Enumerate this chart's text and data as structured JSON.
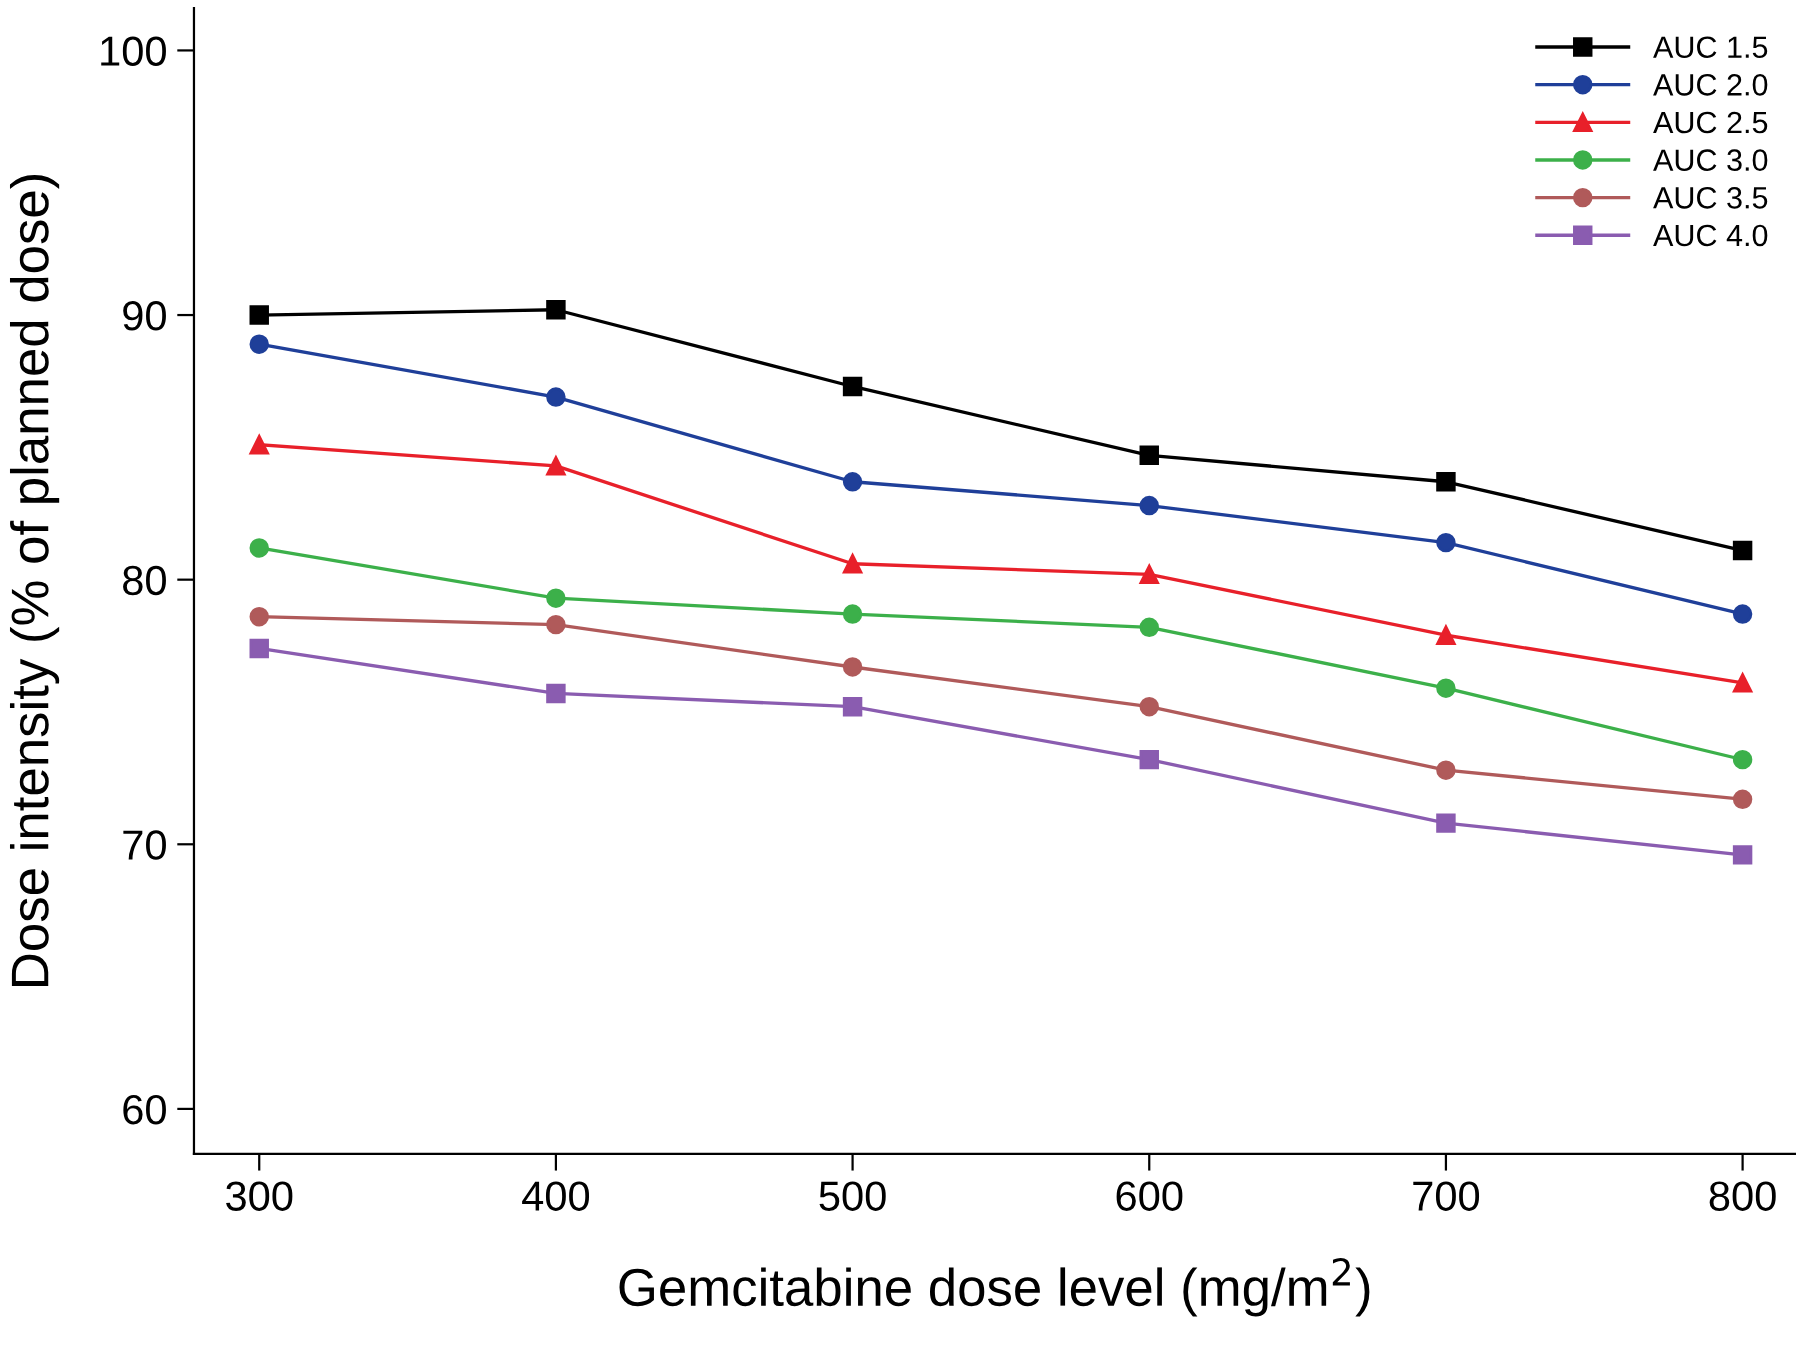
{
  "chart_data": {
    "type": "line",
    "xlabel": "Gemcitabine dose level (mg/m$^{2}$)",
    "ylabel": "Dose intensity (% of planned dose)",
    "x": [
      300,
      400,
      500,
      600,
      700,
      800
    ],
    "xlim": [
      278,
      818
    ],
    "xticks": [
      300,
      400,
      500,
      600,
      700,
      800
    ],
    "ylim": [
      58.3,
      101.6
    ],
    "yticks": [
      60,
      70,
      80,
      90,
      100
    ],
    "grid": false,
    "legend": "top right",
    "line_style": "solid",
    "series": [
      {
        "name": "AUC 1.5",
        "color": "#000000",
        "marker": "square",
        "values": [
          90.0,
          90.2,
          87.3,
          84.7,
          83.7,
          81.1
        ]
      },
      {
        "name": "AUC 2.0",
        "color": "#1f3f99",
        "marker": "circle",
        "values": [
          88.9,
          86.9,
          83.7,
          82.8,
          81.4,
          78.7
        ]
      },
      {
        "name": "AUC 2.5",
        "color": "#e8202a",
        "marker": "triangle",
        "values": [
          85.1,
          84.3,
          80.6,
          80.2,
          77.9,
          76.1
        ]
      },
      {
        "name": "AUC 3.0",
        "color": "#3cb04a",
        "marker": "circle",
        "values": [
          81.2,
          79.3,
          78.7,
          78.2,
          75.9,
          73.2
        ]
      },
      {
        "name": "AUC 3.5",
        "color": "#b05a5a",
        "marker": "circle",
        "values": [
          78.6,
          78.3,
          76.7,
          75.2,
          72.8,
          71.7
        ]
      },
      {
        "name": "AUC 4.0",
        "color": "#8a5cb0",
        "marker": "square",
        "values": [
          77.4,
          75.7,
          75.2,
          73.2,
          70.8,
          69.6
        ]
      }
    ]
  }
}
